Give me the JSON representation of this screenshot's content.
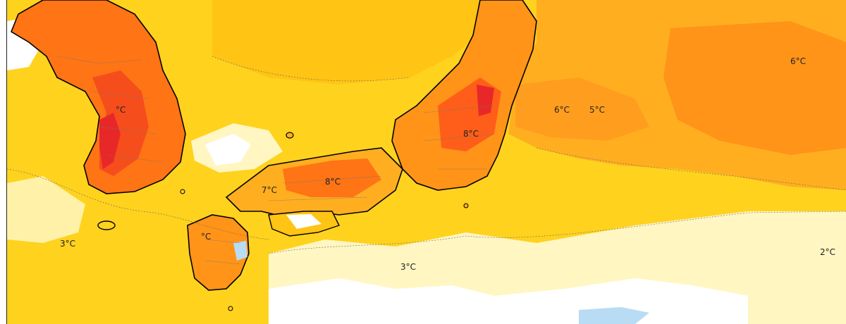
{
  "colors": {
    "pale": "#fff6c2",
    "yellow": "#ffde2e",
    "gold": "#ffc414",
    "orange_light": "#ffae20",
    "orange": "#ff9418",
    "orange_dark": "#ff7414",
    "red_orange": "#f54e1c",
    "red": "#e82828",
    "white": "#ffffff",
    "ice": "#b8dcf4",
    "ice_deep": "#80c0ec",
    "coast": "#000000",
    "boundary": "#777777"
  },
  "temperature_labels": [
    {
      "id": "korea-west",
      "text": "°C"
    },
    {
      "id": "tohoku-east-1",
      "text": "6°C"
    },
    {
      "id": "tohoku-east-2",
      "text": "5°C"
    },
    {
      "id": "pacific-northeast",
      "text": "6°C"
    },
    {
      "id": "kanto-inland",
      "text": "8°C"
    },
    {
      "id": "chugoku-1",
      "text": "7°C"
    },
    {
      "id": "chugoku-2",
      "text": "8°C"
    },
    {
      "id": "yellow-sea",
      "text": "3°C"
    },
    {
      "id": "pacific-south",
      "text": "3°C"
    },
    {
      "id": "pacific-east",
      "text": "2°C"
    },
    {
      "id": "kyushu",
      "text": "°C"
    }
  ]
}
